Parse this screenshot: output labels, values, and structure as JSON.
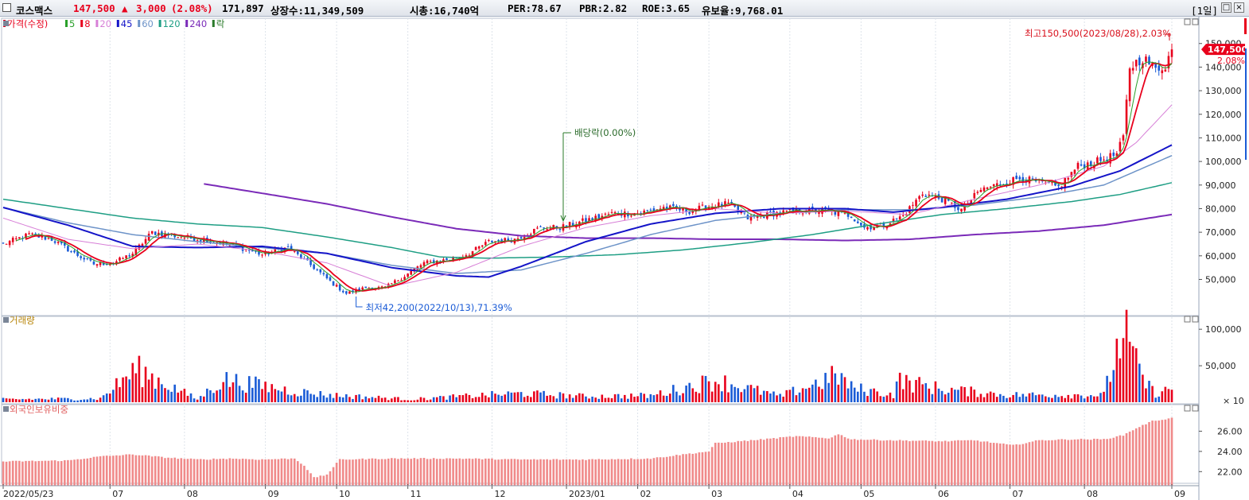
{
  "header": {
    "name": "코스맥스",
    "price": "147,500",
    "change_arrow": "▲",
    "change": "3,000",
    "change_pct": "(2.08%)",
    "volume": "171,897",
    "listed": "상장수:11,349,509",
    "mktcap": "시총:16,740억",
    "per": "PER:78.67",
    "pbr": "PBR:2.82",
    "roe": "ROE:3.65",
    "float": "유보율:9,768.01",
    "period": "[1일]",
    "colors": {
      "up": "#e8001c",
      "down": "#1a5bd6",
      "ma20": "#d77fd7",
      "ma45": "#1414c8",
      "ma60": "#6d93c8",
      "ma120": "#1e9e84",
      "ma240": "#7a2ab8"
    }
  },
  "chart_data": [
    {
      "type": "candlestick",
      "title": "가격(수정)",
      "legend": [
        {
          "label": "가격(수정)",
          "color": "#e8001c"
        },
        {
          "label": "5",
          "color": "#2aa02a"
        },
        {
          "label": "8",
          "color": "#e8001c"
        },
        {
          "label": "20",
          "color": "#d77fd7"
        },
        {
          "label": "45",
          "color": "#1414c8"
        },
        {
          "label": "60",
          "color": "#6d93c8"
        },
        {
          "label": "120",
          "color": "#1e9e84"
        },
        {
          "label": "240",
          "color": "#7a2ab8"
        },
        {
          "label": "락",
          "color": "#2a7a2a"
        }
      ],
      "ylim": [
        35000,
        158000
      ],
      "y_ticks": [
        50000,
        60000,
        70000,
        80000,
        90000,
        100000,
        110000,
        120000,
        130000,
        140000,
        150000
      ],
      "y_tick_labels": [
        "50,000",
        "60,000",
        "70,000",
        "80,000",
        "90,000",
        "100,000",
        "110,000",
        "120,000",
        "130,000",
        "140,000",
        "150,000"
      ],
      "close_anchors": [
        [
          0,
          65000
        ],
        [
          8,
          69000
        ],
        [
          15,
          67000
        ],
        [
          22,
          61000
        ],
        [
          28,
          56500
        ],
        [
          34,
          57000
        ],
        [
          40,
          61000
        ],
        [
          46,
          70000
        ],
        [
          55,
          68000
        ],
        [
          64,
          66500
        ],
        [
          72,
          64000
        ],
        [
          80,
          60500
        ],
        [
          88,
          63500
        ],
        [
          96,
          55000
        ],
        [
          102,
          48000
        ],
        [
          106,
          44000
        ],
        [
          112,
          46500
        ],
        [
          118,
          46500
        ],
        [
          124,
          51500
        ],
        [
          130,
          57000
        ],
        [
          138,
          58500
        ],
        [
          144,
          61000
        ],
        [
          150,
          66000
        ],
        [
          158,
          67000
        ],
        [
          166,
          72000
        ],
        [
          172,
          72000
        ],
        [
          180,
          75000
        ],
        [
          188,
          78000
        ],
        [
          196,
          78000
        ],
        [
          204,
          80500
        ],
        [
          212,
          79000
        ],
        [
          218,
          81000
        ],
        [
          224,
          82000
        ],
        [
          230,
          76000
        ],
        [
          238,
          78000
        ],
        [
          246,
          79000
        ],
        [
          254,
          79000
        ],
        [
          262,
          77000
        ],
        [
          266,
          72000
        ],
        [
          272,
          73000
        ],
        [
          278,
          77000
        ],
        [
          284,
          86500
        ],
        [
          290,
          84000
        ],
        [
          296,
          79500
        ],
        [
          302,
          88000
        ],
        [
          308,
          90500
        ],
        [
          314,
          93000
        ],
        [
          320,
          91000
        ],
        [
          326,
          89000
        ],
        [
          332,
          98000
        ],
        [
          338,
          100000
        ],
        [
          344,
          103000
        ],
        [
          346,
          110000
        ],
        [
          348,
          140000
        ],
        [
          352,
          144000
        ],
        [
          356,
          139000
        ],
        [
          359,
          141000
        ],
        [
          361,
          147500
        ]
      ],
      "ma_anchors": {
        "20": [
          [
            0,
            76000
          ],
          [
            20,
            67000
          ],
          [
            40,
            63000
          ],
          [
            60,
            65000
          ],
          [
            80,
            62000
          ],
          [
            100,
            57000
          ],
          [
            120,
            47000
          ],
          [
            140,
            53000
          ],
          [
            160,
            64000
          ],
          [
            180,
            72000
          ],
          [
            200,
            77000
          ],
          [
            220,
            80000
          ],
          [
            240,
            78000
          ],
          [
            260,
            79000
          ],
          [
            280,
            77500
          ],
          [
            300,
            84000
          ],
          [
            320,
            90000
          ],
          [
            340,
            98000
          ],
          [
            350,
            108000
          ],
          [
            361,
            124000
          ]
        ],
        "45": [
          [
            0,
            80500
          ],
          [
            20,
            73000
          ],
          [
            40,
            64000
          ],
          [
            60,
            63500
          ],
          [
            80,
            64000
          ],
          [
            100,
            61000
          ],
          [
            120,
            55000
          ],
          [
            140,
            51500
          ],
          [
            150,
            51000
          ],
          [
            160,
            55500
          ],
          [
            180,
            66000
          ],
          [
            200,
            73500
          ],
          [
            220,
            78000
          ],
          [
            240,
            80000
          ],
          [
            260,
            80000
          ],
          [
            275,
            78500
          ],
          [
            290,
            80500
          ],
          [
            310,
            84000
          ],
          [
            330,
            89500
          ],
          [
            345,
            96000
          ],
          [
            361,
            107000
          ]
        ],
        "60": [
          [
            0,
            80500
          ],
          [
            20,
            74000
          ],
          [
            40,
            69000
          ],
          [
            60,
            66000
          ],
          [
            80,
            63500
          ],
          [
            100,
            61000
          ],
          [
            120,
            56000
          ],
          [
            140,
            52500
          ],
          [
            160,
            54000
          ],
          [
            180,
            61000
          ],
          [
            200,
            69000
          ],
          [
            220,
            75000
          ],
          [
            240,
            78000
          ],
          [
            260,
            79500
          ],
          [
            280,
            79500
          ],
          [
            300,
            81500
          ],
          [
            320,
            85000
          ],
          [
            340,
            90000
          ],
          [
            361,
            102500
          ]
        ],
        "120": [
          [
            0,
            84000
          ],
          [
            20,
            80000
          ],
          [
            40,
            76000
          ],
          [
            60,
            73500
          ],
          [
            80,
            72000
          ],
          [
            100,
            68000
          ],
          [
            120,
            63500
          ],
          [
            135,
            59500
          ],
          [
            150,
            59000
          ],
          [
            170,
            59500
          ],
          [
            190,
            60500
          ],
          [
            210,
            62500
          ],
          [
            230,
            65500
          ],
          [
            250,
            69000
          ],
          [
            270,
            73500
          ],
          [
            290,
            77500
          ],
          [
            310,
            80000
          ],
          [
            330,
            83000
          ],
          [
            345,
            86000
          ],
          [
            361,
            91000
          ]
        ],
        "240": [
          [
            62,
            90500
          ],
          [
            80,
            86500
          ],
          [
            100,
            82000
          ],
          [
            120,
            76500
          ],
          [
            140,
            71500
          ],
          [
            160,
            68500
          ],
          [
            180,
            67500
          ],
          [
            200,
            67500
          ],
          [
            220,
            67000
          ],
          [
            240,
            67000
          ],
          [
            260,
            66500
          ],
          [
            280,
            67000
          ],
          [
            300,
            69000
          ],
          [
            320,
            70500
          ],
          [
            340,
            73000
          ],
          [
            361,
            77500
          ]
        ]
      },
      "annotations": {
        "high": "최고150,500(2023/08/28),2.03%",
        "low": "최저42,200(2022/10/13),71.39%",
        "dividend": "배당락(0.00%)",
        "last_price": "147,500",
        "last_pct": "2.08%"
      }
    },
    {
      "type": "bar",
      "title": "거래량",
      "ylim": [
        0,
        110000
      ],
      "y_ticks": [
        50000,
        100000
      ],
      "y_tick_labels": [
        "50,000",
        "100,000"
      ],
      "unit_label": "× 10",
      "volume_anchors": [
        [
          0,
          4000
        ],
        [
          30,
          5000
        ],
        [
          41,
          45000
        ],
        [
          60,
          4000
        ],
        [
          68,
          31000
        ],
        [
          90,
          15000
        ],
        [
          100,
          10000
        ],
        [
          126,
          4000
        ],
        [
          150,
          10000
        ],
        [
          160,
          12000
        ],
        [
          180,
          8000
        ],
        [
          200,
          9000
        ],
        [
          220,
          30000
        ],
        [
          240,
          8000
        ],
        [
          258,
          37000
        ],
        [
          262,
          20000
        ],
        [
          275,
          10000
        ],
        [
          276,
          30000
        ],
        [
          290,
          18000
        ],
        [
          310,
          10000
        ],
        [
          340,
          10000
        ],
        [
          346,
          100000
        ],
        [
          348,
          76000
        ],
        [
          350,
          50000
        ],
        [
          353,
          25000
        ],
        [
          356,
          12000
        ],
        [
          361,
          18000
        ]
      ]
    },
    {
      "type": "bar",
      "title": "외국인보유비중",
      "ylim": [
        21000,
        28000
      ],
      "y_ticks": [
        22000,
        24000,
        26000
      ],
      "y_tick_labels": [
        "22.00",
        "24.00",
        "26.00"
      ],
      "holding_anchors": [
        [
          0,
          23000
        ],
        [
          20,
          23100
        ],
        [
          30,
          23500
        ],
        [
          40,
          23700
        ],
        [
          50,
          23400
        ],
        [
          60,
          23200
        ],
        [
          70,
          23300
        ],
        [
          80,
          23200
        ],
        [
          90,
          23300
        ],
        [
          93,
          22600
        ],
        [
          96,
          21400
        ],
        [
          100,
          21700
        ],
        [
          104,
          23200
        ],
        [
          120,
          23300
        ],
        [
          140,
          23300
        ],
        [
          160,
          23200
        ],
        [
          180,
          23200
        ],
        [
          200,
          23300
        ],
        [
          210,
          23700
        ],
        [
          218,
          24000
        ],
        [
          220,
          24800
        ],
        [
          235,
          25200
        ],
        [
          245,
          25500
        ],
        [
          255,
          25300
        ],
        [
          258,
          25700
        ],
        [
          262,
          25200
        ],
        [
          275,
          25100
        ],
        [
          290,
          25000
        ],
        [
          300,
          25100
        ],
        [
          312,
          24600
        ],
        [
          320,
          25100
        ],
        [
          330,
          25200
        ],
        [
          340,
          25200
        ],
        [
          346,
          25600
        ],
        [
          350,
          26300
        ],
        [
          355,
          27000
        ],
        [
          361,
          27300
        ]
      ]
    }
  ],
  "x_axis": {
    "labels": [
      "2022/05/23",
      "07",
      "08",
      "09",
      "10",
      "11",
      "12",
      "2023/01",
      "02",
      "03",
      "04",
      "05",
      "06",
      "07",
      "08",
      "09"
    ],
    "label_bars": [
      0,
      33,
      56,
      81,
      103,
      125,
      151,
      174,
      196,
      218,
      243,
      265,
      288,
      311,
      334,
      361
    ]
  }
}
